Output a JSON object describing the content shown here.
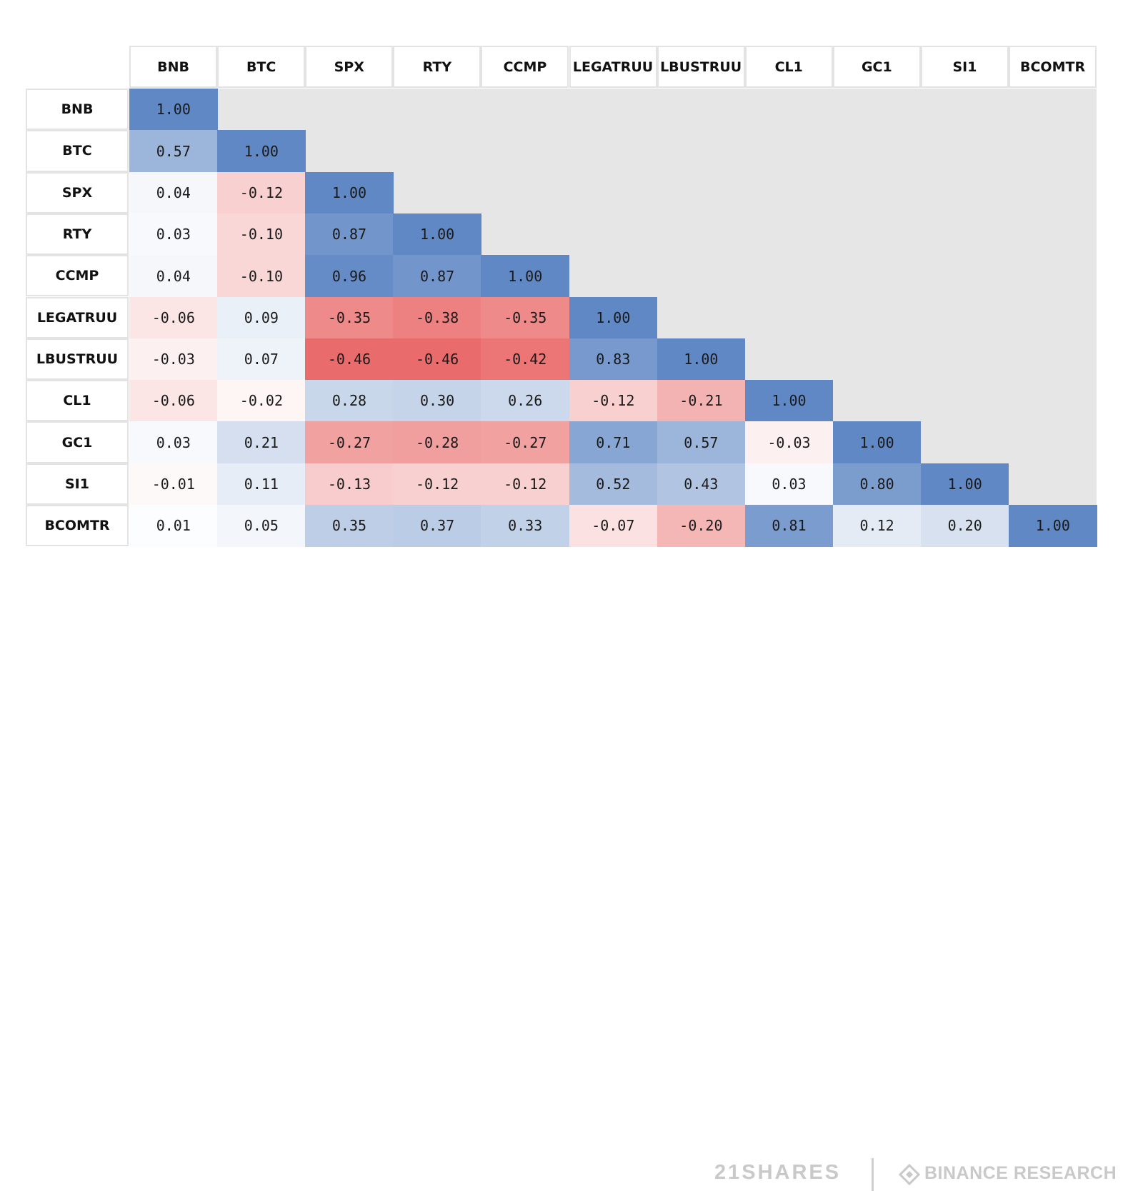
{
  "chart_data": {
    "type": "heatmap",
    "labels": [
      "BNB",
      "BTC",
      "SPX",
      "RTY",
      "CCMP",
      "LEGATRUU",
      "LBUSTRUU",
      "CL1",
      "GC1",
      "SI1",
      "BCOMTR"
    ],
    "matrix_lower": [
      [
        "1.00"
      ],
      [
        "0.57",
        "1.00"
      ],
      [
        "0.04",
        "-0.12",
        "1.00"
      ],
      [
        "0.03",
        "-0.10",
        "0.87",
        "1.00"
      ],
      [
        "0.04",
        "-0.10",
        "0.96",
        "0.87",
        "1.00"
      ],
      [
        "-0.06",
        "0.09",
        "-0.35",
        "-0.38",
        "-0.35",
        "1.00"
      ],
      [
        "-0.03",
        "0.07",
        "-0.46",
        "-0.46",
        "-0.42",
        "0.83",
        "1.00"
      ],
      [
        "-0.06",
        "-0.02",
        "0.28",
        "0.30",
        "0.26",
        "-0.12",
        "-0.21",
        "1.00"
      ],
      [
        "0.03",
        "0.21",
        "-0.27",
        "-0.28",
        "-0.27",
        "0.71",
        "0.57",
        "-0.03",
        "1.00"
      ],
      [
        "-0.01",
        "0.11",
        "-0.13",
        "-0.12",
        "-0.12",
        "0.52",
        "0.43",
        "0.03",
        "0.80",
        "1.00"
      ],
      [
        "0.01",
        "0.05",
        "0.35",
        "0.37",
        "0.33",
        "-0.07",
        "-0.20",
        "0.81",
        "0.12",
        "0.20",
        "1.00"
      ]
    ],
    "colors": {
      "positive_max": "#6088c4",
      "negative_max": "#ea6b6b",
      "neutral": "#ffffff",
      "upper_triangle": "#e6e6e6",
      "header_border": "#e3e3e3"
    }
  },
  "footer": {
    "brand_left": "21SHARES",
    "brand_right": "BINANCE RESEARCH",
    "brand_right_icon": "binance-diamond-icon"
  }
}
